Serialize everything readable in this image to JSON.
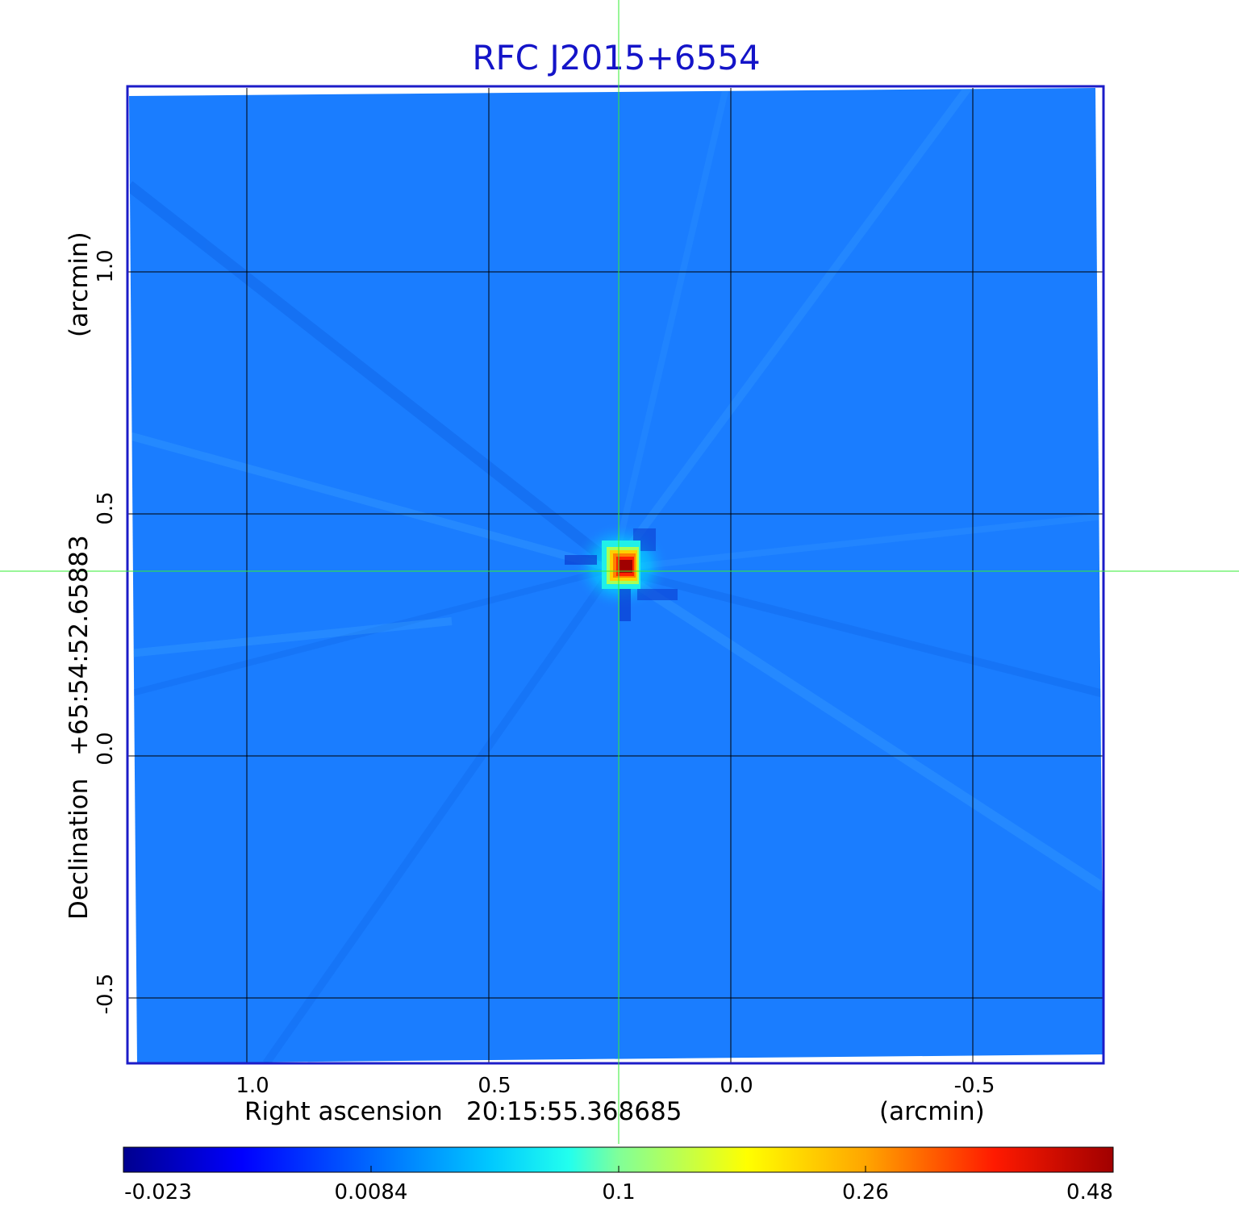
{
  "title": "RFC J2015+6554",
  "x_axis": {
    "label": "Right ascension",
    "center": "20:15:55.368685",
    "unit": "(arcmin)",
    "ticks": [
      "1.0",
      "0.5",
      "0.0",
      "-0.5"
    ]
  },
  "y_axis": {
    "label": "Declination",
    "center": "+65:54:52.65883",
    "unit": "(arcmin)",
    "ticks": [
      "1.0",
      "0.5",
      "0.0",
      "-0.5"
    ]
  },
  "colorbar": {
    "ticks": [
      "-0.023",
      "0.0084",
      "0.1",
      "0.26",
      "0.48"
    ],
    "colormap": "jet"
  },
  "colors": {
    "frame": "#1c1cc8",
    "title": "#1414c8",
    "background_map": "#1a7dff",
    "crosshair": "#33ee33",
    "grid": "#000000"
  },
  "chart_data": {
    "type": "heatmap",
    "title": "RFC J2015+6554",
    "xlabel": "Right ascension 20:15:55.368685",
    "ylabel": "Declination +65:54:52.65883",
    "x_unit": "arcmin",
    "y_unit": "arcmin",
    "x_ticks": [
      1.0,
      0.5,
      0.0,
      -0.5
    ],
    "y_ticks": [
      1.0,
      0.5,
      0.0,
      -0.5
    ],
    "xlim": [
      1.25,
      -0.77
    ],
    "ylim": [
      -0.63,
      1.38
    ],
    "grid": true,
    "source_peak": {
      "x": 0.23,
      "y": 0.38,
      "value": 0.48
    },
    "color_scale": {
      "min": -0.023,
      "max": 0.48,
      "ticks": [
        -0.023,
        0.0084,
        0.1,
        0.26,
        0.48
      ]
    }
  }
}
